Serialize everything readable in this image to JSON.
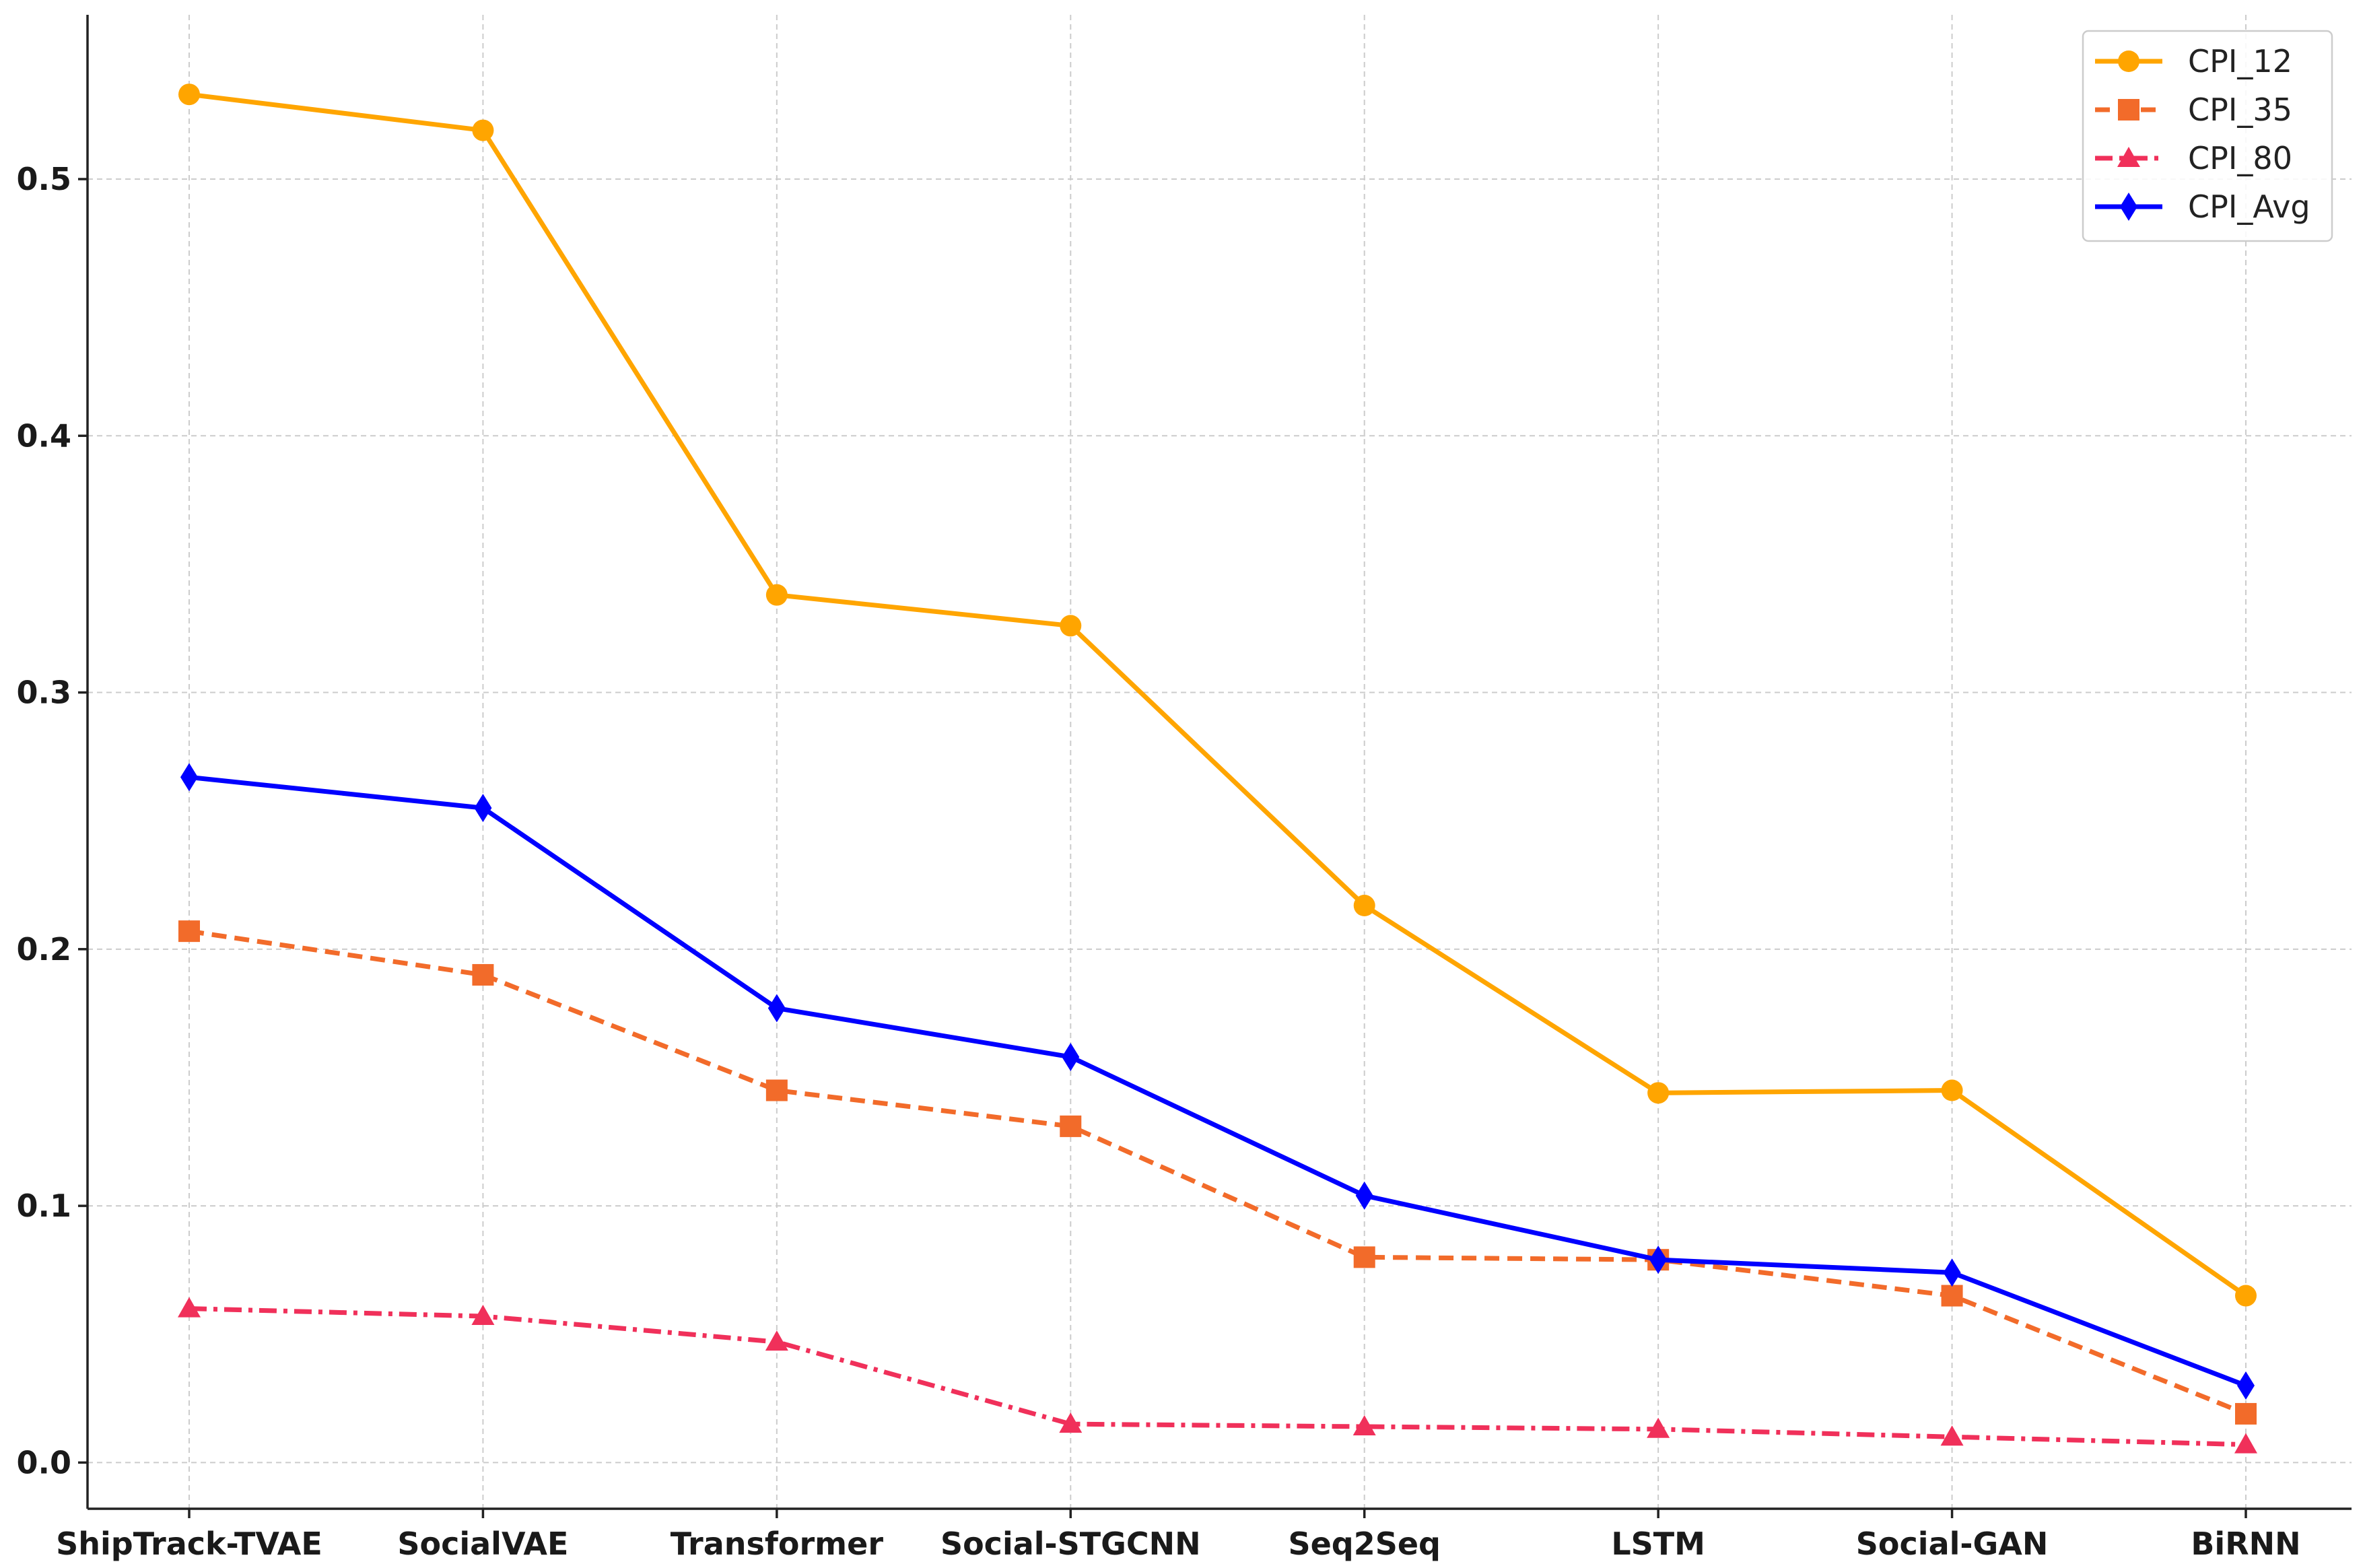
{
  "chart_data": {
    "type": "line",
    "title": "",
    "xlabel": "",
    "ylabel": "",
    "categories": [
      "ShipTrack-TVAE",
      "SocialVAE",
      "Transformer",
      "Social-STGCNN",
      "Seq2Seq",
      "LSTM",
      "Social-GAN",
      "BiRNN"
    ],
    "ylim": [
      -0.018,
      0.564
    ],
    "yticks": [
      0.0,
      0.1,
      0.2,
      0.3,
      0.4,
      0.5
    ],
    "ytick_labels": [
      "0.0",
      "0.1",
      "0.2",
      "0.3",
      "0.4",
      "0.5"
    ],
    "grid": true,
    "legend_position": "top-right",
    "series": [
      {
        "name": "CPI_12",
        "color": "#FFA500",
        "line_style": "solid",
        "marker": "circle",
        "values": [
          0.533,
          0.519,
          0.338,
          0.326,
          0.217,
          0.144,
          0.145,
          0.065
        ]
      },
      {
        "name": "CPI_35",
        "color": "#F26B2A",
        "line_style": "dashed",
        "marker": "square",
        "values": [
          0.207,
          0.19,
          0.145,
          0.131,
          0.08,
          0.079,
          0.065,
          0.019
        ]
      },
      {
        "name": "CPI_80",
        "color": "#F0305A",
        "line_style": "dashdot",
        "marker": "triangle",
        "values": [
          0.06,
          0.057,
          0.047,
          0.015,
          0.014,
          0.013,
          0.01,
          0.007
        ]
      },
      {
        "name": "CPI_Avg",
        "color": "#0000FF",
        "line_style": "solid",
        "marker": "diamond",
        "values": [
          0.267,
          0.255,
          0.177,
          0.158,
          0.104,
          0.079,
          0.074,
          0.03
        ]
      }
    ]
  }
}
